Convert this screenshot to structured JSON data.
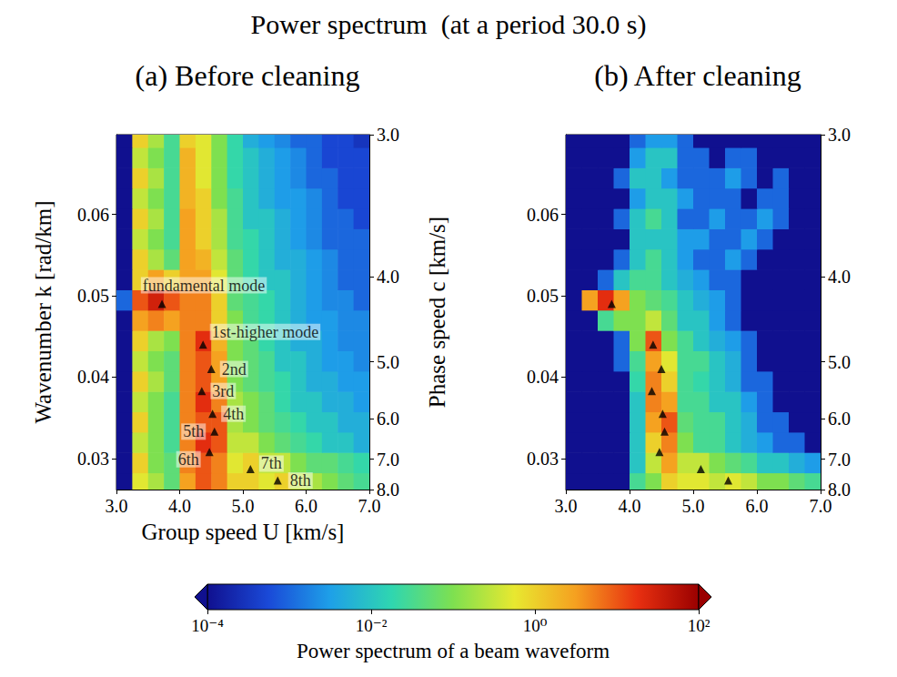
{
  "title": "Power spectrum  (at a period 30.0 s)",
  "period": 30.0,
  "colorbar": {
    "label": "Power spectrum of a beam waveform",
    "log": true,
    "lim": [
      0.0001,
      100
    ],
    "ticks": [
      {
        "value": 0.0001,
        "label": "10⁻⁴"
      },
      {
        "value": 0.01,
        "label": "10⁻²"
      },
      {
        "value": 1,
        "label": "10⁰"
      },
      {
        "value": 100,
        "label": "10²"
      }
    ]
  },
  "chart_data": [
    {
      "type": "heatmap",
      "title": "(a) Before cleaning",
      "xlabel": "Group speed U [km/s]",
      "ylabel": "Wavenumber k [rad/km]",
      "y2label": "Phase speed c [km/s]",
      "xlim": [
        3.0,
        7.0
      ],
      "xticks": [
        {
          "value": 3,
          "label": "3.0"
        },
        {
          "value": 4,
          "label": "4.0"
        },
        {
          "value": 5,
          "label": "5.0"
        },
        {
          "value": 6,
          "label": "6.0"
        },
        {
          "value": 7,
          "label": "7.0"
        }
      ],
      "ylim": [
        0.026179,
        0.069814
      ],
      "yticks": [
        0.03,
        0.04,
        0.05,
        0.06
      ],
      "y2lim": [
        8.0,
        3.0
      ],
      "y2ticks": [
        {
          "value": 3,
          "label": "3.0"
        },
        {
          "value": 4,
          "label": "4.0"
        },
        {
          "value": 5,
          "label": "5.0"
        },
        {
          "value": 6,
          "label": "6.0"
        },
        {
          "value": 7,
          "label": "7.0"
        },
        {
          "value": 8,
          "label": "8.0"
        }
      ],
      "marker": "triangle",
      "U": [
        3.125,
        3.375,
        3.625,
        3.875,
        4.125,
        4.375,
        4.625,
        4.875,
        5.125,
        5.375,
        5.625,
        5.875,
        6.125,
        6.375,
        6.625,
        6.875
      ],
      "k": [
        0.027,
        0.0295,
        0.032,
        0.0345,
        0.037,
        0.0395,
        0.042,
        0.0445,
        0.047,
        0.0495,
        0.052,
        0.0545,
        0.057,
        0.0595,
        0.062,
        0.0645,
        0.067,
        0.0695
      ],
      "power": [
        [
          0.0001,
          0.5,
          0.2,
          0.05,
          3.0,
          10.0,
          5.0,
          1.0,
          1.0,
          0.5,
          1.0,
          0.3,
          0.2,
          0.1,
          0.05,
          0.03
        ],
        [
          0.0001,
          1.0,
          0.1,
          0.05,
          5.0,
          10.0,
          5.0,
          0.5,
          1.0,
          0.3,
          0.3,
          0.1,
          0.05,
          0.05,
          0.03,
          0.02
        ],
        [
          0.0001,
          0.3,
          0.1,
          0.03,
          5.0,
          20.0,
          10.0,
          0.3,
          0.3,
          0.1,
          0.05,
          0.03,
          0.02,
          0.01,
          0.01,
          0.005
        ],
        [
          0.0001,
          1.0,
          0.1,
          0.03,
          5.0,
          10.0,
          10.0,
          0.2,
          0.1,
          0.05,
          0.03,
          0.02,
          0.01,
          0.01,
          0.005,
          0.005
        ],
        [
          0.0001,
          0.3,
          0.1,
          0.03,
          5.0,
          20.0,
          5.0,
          0.2,
          0.1,
          0.05,
          0.02,
          0.01,
          0.01,
          0.005,
          0.005,
          0.003
        ],
        [
          0.0001,
          1.0,
          0.2,
          0.05,
          5.0,
          10.0,
          3.0,
          0.1,
          0.05,
          0.03,
          0.02,
          0.01,
          0.005,
          0.005,
          0.003,
          0.003
        ],
        [
          0.0001,
          0.3,
          0.1,
          0.05,
          5.0,
          10.0,
          3.0,
          0.1,
          0.05,
          0.03,
          0.01,
          0.01,
          0.005,
          0.003,
          0.003,
          0.002
        ],
        [
          0.0001,
          1.0,
          0.2,
          0.1,
          5.0,
          20.0,
          2.0,
          0.1,
          0.05,
          0.02,
          0.01,
          0.005,
          0.005,
          0.003,
          0.002,
          0.002
        ],
        [
          0.0001,
          3.0,
          5.0,
          3.0,
          5.0,
          5.0,
          1.0,
          0.1,
          0.03,
          0.02,
          0.01,
          0.005,
          0.003,
          0.003,
          0.002,
          0.002
        ],
        [
          0.001,
          10.0,
          30.0,
          10.0,
          5.0,
          5.0,
          1.0,
          0.05,
          0.03,
          0.02,
          0.01,
          0.005,
          0.003,
          0.002,
          0.002,
          0.001
        ],
        [
          0.0001,
          1.0,
          3.0,
          1.0,
          3.0,
          3.0,
          0.5,
          0.05,
          0.02,
          0.01,
          0.01,
          0.005,
          0.003,
          0.002,
          0.001,
          0.001
        ],
        [
          0.0001,
          1.0,
          0.2,
          0.05,
          3.0,
          2.0,
          0.3,
          0.05,
          0.02,
          0.01,
          0.005,
          0.005,
          0.003,
          0.002,
          0.001,
          0.001
        ],
        [
          0.0001,
          0.3,
          0.1,
          0.03,
          3.0,
          1.0,
          0.2,
          0.03,
          0.02,
          0.01,
          0.005,
          0.003,
          0.002,
          0.001,
          0.001,
          0.001
        ],
        [
          0.0001,
          1.0,
          0.2,
          0.03,
          3.0,
          1.0,
          0.2,
          0.03,
          0.01,
          0.01,
          0.005,
          0.003,
          0.002,
          0.001,
          0.001,
          0.0005
        ],
        [
          0.0001,
          0.3,
          0.1,
          0.03,
          2.0,
          1.0,
          0.1,
          0.03,
          0.01,
          0.005,
          0.003,
          0.003,
          0.002,
          0.001,
          0.0005,
          0.0005
        ],
        [
          0.0001,
          1.0,
          0.2,
          0.03,
          2.0,
          0.5,
          0.1,
          0.02,
          0.01,
          0.005,
          0.003,
          0.002,
          0.001,
          0.001,
          0.0005,
          0.0005
        ],
        [
          0.0001,
          0.3,
          0.1,
          0.03,
          2.0,
          0.5,
          0.1,
          0.02,
          0.01,
          0.005,
          0.003,
          0.002,
          0.001,
          0.0005,
          0.0005,
          0.0005
        ],
        [
          0.0001,
          1.0,
          0.2,
          0.03,
          1.0,
          0.5,
          0.1,
          0.02,
          0.005,
          0.003,
          0.002,
          0.001,
          0.001,
          0.0005,
          0.0005,
          0.0003
        ]
      ],
      "modes": {
        "labels": [
          "fundamental mode",
          "1st-higher mode",
          "2nd",
          "3rd",
          "4th",
          "5th",
          "6th",
          "7th",
          "8th"
        ],
        "U": [
          3.72,
          4.37,
          4.5,
          4.35,
          4.52,
          4.55,
          4.47,
          5.12,
          5.55
        ],
        "k": [
          0.049,
          0.044,
          0.041,
          0.0383,
          0.0355,
          0.0333,
          0.0308,
          0.0287,
          0.0273
        ]
      }
    },
    {
      "type": "heatmap",
      "title": "(b) After cleaning",
      "xlim": [
        3.0,
        7.0
      ],
      "xticks": [
        {
          "value": 3,
          "label": "3.0"
        },
        {
          "value": 4,
          "label": "4.0"
        },
        {
          "value": 5,
          "label": "5.0"
        },
        {
          "value": 6,
          "label": "6.0"
        },
        {
          "value": 7,
          "label": "7.0"
        }
      ],
      "ylim": [
        0.026179,
        0.069814
      ],
      "yticks": [
        0.03,
        0.04,
        0.05,
        0.06
      ],
      "y2lim": [
        8.0,
        3.0
      ],
      "y2ticks": [
        {
          "value": 3,
          "label": "3.0"
        },
        {
          "value": 4,
          "label": "4.0"
        },
        {
          "value": 5,
          "label": "5.0"
        },
        {
          "value": 6,
          "label": "6.0"
        },
        {
          "value": 7,
          "label": "7.0"
        },
        {
          "value": 8,
          "label": "8.0"
        }
      ],
      "marker": "triangle",
      "U": [
        3.125,
        3.375,
        3.625,
        3.875,
        4.125,
        4.375,
        4.625,
        4.875,
        5.125,
        5.375,
        5.625,
        5.875,
        6.125,
        6.375,
        6.625,
        6.875
      ],
      "k": [
        0.027,
        0.0295,
        0.032,
        0.0345,
        0.037,
        0.0395,
        0.042,
        0.0445,
        0.047,
        0.0495,
        0.052,
        0.0545,
        0.057,
        0.0595,
        0.062,
        0.0645,
        0.067,
        0.0695
      ],
      "power": [
        [
          0.0001,
          0.0001,
          0.0001,
          0.0001,
          0.03,
          0.1,
          1.0,
          0.5,
          0.5,
          0.3,
          0.5,
          0.3,
          0.1,
          0.1,
          0.05,
          0.03
        ],
        [
          0.0001,
          0.0001,
          0.0001,
          0.0001,
          0.01,
          0.3,
          3.0,
          0.3,
          0.3,
          0.1,
          0.05,
          0.03,
          0.01,
          0.01,
          0.005,
          0.003
        ],
        [
          0.0001,
          0.0001,
          0.0001,
          0.0001,
          0.01,
          1.0,
          5.0,
          0.1,
          0.03,
          0.03,
          0.01,
          0.005,
          0.003,
          0.001,
          0.001,
          0.0001
        ],
        [
          0.0001,
          0.0001,
          0.0001,
          0.0001,
          0.01,
          3.0,
          10.0,
          0.05,
          0.03,
          0.03,
          0.01,
          0.005,
          0.001,
          0.001,
          0.0001,
          0.0001
        ],
        [
          0.0001,
          0.0001,
          0.0001,
          0.0001,
          0.01,
          5.0,
          3.0,
          0.03,
          0.03,
          0.01,
          0.01,
          0.003,
          0.001,
          0.0001,
          0.0001,
          0.0001
        ],
        [
          0.0001,
          0.0001,
          0.0001,
          0.0001,
          0.02,
          5.0,
          1.0,
          0.03,
          0.02,
          0.01,
          0.005,
          0.001,
          0.001,
          0.0001,
          0.0001,
          0.0001
        ],
        [
          0.0001,
          0.0001,
          0.0001,
          0.001,
          0.03,
          3.0,
          0.5,
          0.03,
          0.03,
          0.01,
          0.005,
          0.001,
          0.0001,
          0.0001,
          0.0001,
          0.0001
        ],
        [
          0.0001,
          0.0001,
          0.0001,
          0.001,
          0.1,
          10.0,
          0.1,
          0.03,
          0.01,
          0.005,
          0.003,
          0.001,
          0.0001,
          0.0001,
          0.0001,
          0.0001
        ],
        [
          0.0001,
          0.0001,
          0.03,
          0.1,
          0.1,
          0.3,
          0.05,
          0.01,
          0.01,
          0.003,
          0.001,
          0.0001,
          0.0001,
          0.0001,
          0.0001,
          0.0001
        ],
        [
          0.0001,
          3.0,
          20.0,
          3.0,
          0.1,
          0.05,
          0.03,
          0.01,
          0.005,
          0.003,
          0.001,
          0.0001,
          0.0001,
          0.0001,
          0.0001,
          0.0001
        ],
        [
          0.0001,
          0.0001,
          0.001,
          0.01,
          0.03,
          0.03,
          0.01,
          0.005,
          0.003,
          0.001,
          0.001,
          0.0001,
          0.0001,
          0.0001,
          0.0001,
          0.0001
        ],
        [
          0.0001,
          0.0001,
          0.0001,
          0.001,
          0.01,
          0.03,
          0.01,
          0.003,
          0.001,
          0.001,
          0.003,
          0.001,
          0.0001,
          0.0001,
          0.0001,
          0.0001
        ],
        [
          0.0001,
          0.0001,
          0.0001,
          0.0001,
          0.01,
          0.01,
          0.01,
          0.003,
          0.003,
          0.001,
          0.001,
          0.003,
          0.001,
          0.0001,
          0.0001,
          0.0001
        ],
        [
          0.0001,
          0.0001,
          0.0001,
          0.001,
          0.01,
          0.03,
          0.01,
          0.001,
          0.001,
          0.003,
          0.001,
          0.001,
          0.003,
          0.001,
          0.0001,
          0.0001
        ],
        [
          0.0001,
          0.0001,
          0.0001,
          0.0001,
          0.003,
          0.01,
          0.01,
          0.003,
          0.001,
          0.001,
          0.001,
          0.0001,
          0.001,
          0.001,
          0.0001,
          0.0001
        ],
        [
          0.0001,
          0.0001,
          0.0001,
          0.001,
          0.01,
          0.01,
          0.003,
          0.001,
          0.001,
          0.001,
          0.003,
          0.001,
          0.0001,
          0.001,
          0.0001,
          0.0001
        ],
        [
          0.0001,
          0.0001,
          0.0001,
          0.0001,
          0.003,
          0.01,
          0.01,
          0.001,
          0.001,
          0.0001,
          0.001,
          0.001,
          0.0001,
          0.0001,
          0.0001,
          0.0001
        ],
        [
          0.0001,
          0.0001,
          0.0001,
          0.0001,
          0.001,
          0.003,
          0.003,
          0.001,
          0.0001,
          0.0001,
          0.0001,
          0.0001,
          0.0001,
          0.0001,
          0.0001,
          0.0001
        ]
      ],
      "modes": {
        "U": [
          3.72,
          4.37,
          4.5,
          4.35,
          4.52,
          4.55,
          4.47,
          5.12,
          5.55
        ],
        "k": [
          0.049,
          0.044,
          0.041,
          0.0383,
          0.0355,
          0.0333,
          0.0308,
          0.0287,
          0.0273
        ]
      }
    }
  ]
}
